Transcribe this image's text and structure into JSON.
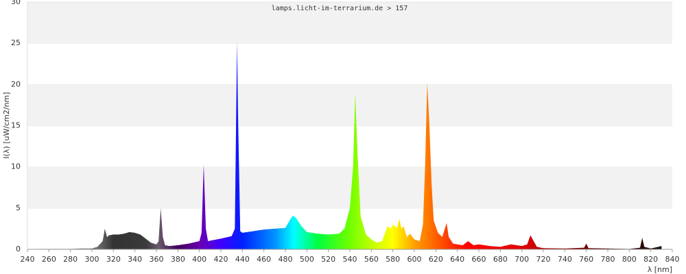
{
  "chart_data": {
    "type": "area",
    "title": "lamps.licht-im-terrarium.de > 157",
    "y_label": "I(λ)  [uW/cm2/nm]",
    "x_label": "λ [nm]",
    "x": [
      250,
      260,
      270,
      280,
      290,
      300,
      305,
      310,
      312,
      314,
      316,
      320,
      325,
      330,
      335,
      340,
      345,
      350,
      355,
      360,
      362,
      364,
      366,
      368,
      372,
      380,
      390,
      400,
      402,
      404,
      406,
      408,
      412,
      420,
      430,
      433,
      435,
      436,
      438,
      440,
      450,
      460,
      470,
      480,
      484,
      487,
      490,
      495,
      500,
      510,
      520,
      530,
      535,
      540,
      543,
      545,
      547,
      550,
      555,
      560,
      565,
      570,
      575,
      578,
      580,
      584,
      586,
      588,
      590,
      593,
      596,
      600,
      605,
      608,
      610,
      612,
      614,
      616,
      618,
      622,
      626,
      630,
      632,
      636,
      640,
      645,
      650,
      655,
      660,
      670,
      680,
      690,
      700,
      705,
      708,
      711,
      714,
      720,
      740,
      758,
      760,
      762,
      780,
      800,
      810,
      812,
      814,
      820,
      827,
      830
    ],
    "values": [
      0.05,
      0.05,
      0.05,
      0.05,
      0.1,
      0.1,
      0.3,
      1.0,
      2.5,
      1.5,
      1.7,
      1.8,
      1.8,
      1.9,
      2.1,
      2.0,
      1.8,
      1.3,
      0.8,
      0.6,
      1.0,
      5.0,
      1.5,
      0.5,
      0.4,
      0.5,
      0.7,
      1.0,
      2.0,
      10.3,
      2.5,
      1.0,
      1.1,
      1.3,
      1.6,
      2.5,
      25.2,
      16,
      2.2,
      2.0,
      2.2,
      2.4,
      2.5,
      2.6,
      3.5,
      4.1,
      3.8,
      2.8,
      2.1,
      1.9,
      1.8,
      1.9,
      2.5,
      5.0,
      10.0,
      19.0,
      12,
      4,
      1.8,
      1.2,
      0.8,
      1.0,
      2.8,
      2.5,
      3.0,
      2.6,
      3.7,
      2.5,
      2.8,
      1.5,
      1.9,
      1.2,
      1.0,
      3.0,
      10.0,
      20.2,
      15,
      8,
      3.5,
      2.0,
      1.5,
      3.2,
      1.5,
      0.7,
      0.6,
      0.5,
      1.0,
      0.5,
      0.6,
      0.4,
      0.3,
      0.6,
      0.4,
      0.6,
      1.7,
      1.0,
      0.3,
      0.15,
      0.1,
      0.2,
      0.7,
      0.15,
      0.1,
      0.05,
      0.2,
      1.4,
      0.3,
      0.1,
      0.3,
      0.4
    ],
    "xlim": [
      240,
      840
    ],
    "xticks": [
      240,
      260,
      280,
      300,
      320,
      340,
      360,
      380,
      400,
      420,
      440,
      460,
      480,
      500,
      520,
      540,
      560,
      580,
      600,
      620,
      640,
      660,
      680,
      700,
      720,
      740,
      760,
      780,
      800,
      820,
      840
    ],
    "ylim": [
      0,
      30
    ],
    "yticks": [
      0,
      5,
      10,
      15,
      20,
      25,
      30
    ],
    "grid": true,
    "color": "wavelength"
  }
}
